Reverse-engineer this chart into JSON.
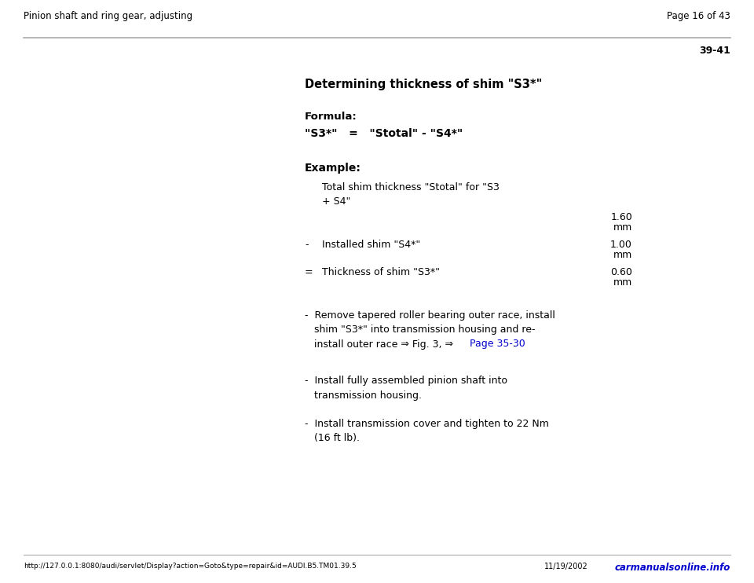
{
  "header_left": "Pinion shaft and ring gear, adjusting",
  "header_right": "Page 16 of 43",
  "section_number": "39-41",
  "title": "Determining thickness of shim \"S3*\"",
  "formula_label": "Formula:",
  "formula_line": "\"S3*\"   =   \"Stotal\" - \"S4*\"",
  "example_label": "Example:",
  "table_row1_label": "Total shim thickness \"Stotal\" for \"S3\n+ S4\"",
  "table_row1_value1": "1.60",
  "table_row1_value2": "mm",
  "table_row2_prefix": "-",
  "table_row2_label": "Installed shim \"S4*\"",
  "table_row2_value1": "1.00",
  "table_row2_value2": "mm",
  "table_row3_prefix": "=",
  "table_row3_label": "Thickness of shim \"S3*\"",
  "table_row3_value1": "0.60",
  "table_row3_value2": "mm",
  "bullet1_pre": "-  Remove tapered roller bearing outer race, install\n   shim \"S3*\" into transmission housing and re-\n   install outer race ⇒ Fig. 3, ⇒ ",
  "bullet1_link": "Page 35-30",
  "bullet1_post": " .",
  "bullet2_text": "-  Install fully assembled pinion shaft into\n   transmission housing.",
  "bullet3_text": "-  Install transmission cover and tighten to 22 Nm\n   (16 ft lb).",
  "footer_url": "http://127.0.0.1:8080/audi/servlet/Display?action=Goto&type=repair&id=AUDI.B5.TM01.39.5",
  "footer_date": "11/19/2002",
  "footer_right": "carmanualsonline.info",
  "bg_color": "#ffffff",
  "text_color": "#000000",
  "link_color": "#0000cc",
  "sep_color": "#aaaaaa"
}
